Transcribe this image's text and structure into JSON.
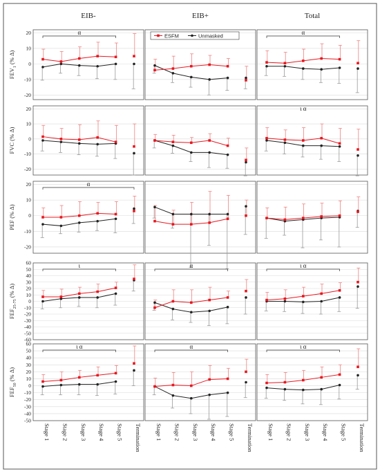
{
  "figure": {
    "columns": [
      "EIB-",
      "EIB+",
      "Total"
    ],
    "x_categories": [
      "Stage 1",
      "Stage 2",
      "Stage 3",
      "Stage 4",
      "Stage 5",
      "Termination"
    ],
    "legend": {
      "esfm": "ESFM",
      "unmasked": "Unmasked",
      "placement": "top of EIB+ panel, FEV1 row"
    },
    "colors": {
      "esfm": "#e8171f",
      "unmasked": "#222222",
      "esfm_error": "#f08080",
      "unmasked_error": "#999999",
      "frame": "#555555"
    }
  },
  "chart_data": [
    {
      "type": "line",
      "row": 0,
      "ylabel": "FEV1 (% Δ)",
      "ylim": [
        -23,
        22
      ],
      "yticks": [
        -20,
        -10,
        0,
        10,
        20
      ],
      "panels": [
        {
          "column": "EIB-",
          "esfm": [
            3,
            1.5,
            3.5,
            5,
            4.5,
            5
          ],
          "esfm_sd": [
            6.5,
            6.5,
            7.5,
            9,
            9,
            14.5
          ],
          "unmasked": [
            -2,
            0,
            -1,
            -1.5,
            0,
            0
          ],
          "unmasked_sd": [
            8.5,
            6,
            6.5,
            8,
            10,
            16
          ],
          "significance": [
            {
              "label": "α",
              "from": 0,
              "to": 4
            }
          ]
        },
        {
          "column": "EIB+",
          "esfm": [
            -4,
            -3,
            -1.5,
            -0.5,
            -1.5,
            -10.5
          ],
          "esfm_sd": [
            7,
            8,
            8,
            6,
            5,
            9
          ],
          "unmasked": [
            -1,
            -6,
            -8.5,
            -10,
            -9,
            -9
          ],
          "unmasked_sd": [
            5,
            6,
            6.5,
            10,
            8,
            7
          ],
          "significance": []
        },
        {
          "column": "Total",
          "esfm": [
            1,
            0.5,
            2,
            3.5,
            3,
            0.5
          ],
          "esfm_sd": [
            7.5,
            7,
            7.5,
            9.5,
            9,
            14.5
          ],
          "unmasked": [
            -1.5,
            -1.5,
            -3,
            -3.5,
            -2.5,
            -3
          ],
          "unmasked_sd": [
            6,
            6.5,
            7,
            8.5,
            10,
            15.5
          ],
          "significance": [
            {
              "label": "α",
              "from": 0,
              "to": 4
            }
          ]
        }
      ]
    },
    {
      "type": "line",
      "row": 1,
      "ylabel": "FVC (% Δ)",
      "ylim": [
        -24,
        22
      ],
      "yticks": [
        -20,
        -10,
        0,
        10,
        20
      ],
      "panels": [
        {
          "column": "EIB-",
          "esfm": [
            1.5,
            0,
            -0.5,
            1,
            -2,
            -5
          ],
          "esfm_sd": [
            7.5,
            7,
            10,
            11,
            11,
            15
          ],
          "unmasked": [
            -1,
            -2,
            -3,
            -3.5,
            -3,
            -9.5
          ],
          "unmasked_sd": [
            7,
            7,
            7.5,
            8,
            10,
            14.5
          ],
          "significance": []
        },
        {
          "column": "EIB+",
          "esfm": [
            -1,
            -2,
            -2.5,
            -1,
            -4.5,
            -14
          ],
          "esfm_sd": [
            4,
            4.5,
            3.5,
            4.5,
            5,
            8
          ],
          "unmasked": [
            -1,
            -4.5,
            -9,
            -9,
            -10.5,
            -15.5
          ],
          "unmasked_sd": [
            5,
            5,
            6,
            10,
            9,
            9
          ],
          "significance": []
        },
        {
          "column": "Total",
          "esfm": [
            0.5,
            -0.5,
            -1,
            0.5,
            -3,
            -7
          ],
          "esfm_sd": [
            7,
            6.5,
            8.5,
            9.5,
            10,
            13.5
          ],
          "unmasked": [
            -1,
            -2.5,
            -4.5,
            -4.5,
            -5,
            -11
          ],
          "unmasked_sd": [
            7,
            7.5,
            7.5,
            9,
            10,
            13.5
          ],
          "significance": [
            {
              "label": "ι α",
              "from": 2,
              "to": 2
            }
          ]
        }
      ]
    },
    {
      "type": "line",
      "row": 2,
      "ylabel": "PEF (% Δ)",
      "ylim": [
        -24,
        22
      ],
      "yticks": [
        -20,
        -10,
        0,
        10,
        20
      ],
      "panels": [
        {
          "column": "EIB-",
          "esfm": [
            -1,
            -1,
            0,
            1.5,
            1,
            3
          ],
          "esfm_sd": [
            6,
            7.5,
            9,
            7,
            8,
            9.5
          ],
          "unmasked": [
            -5.5,
            -6.5,
            -4.5,
            -3.5,
            -2,
            4.5
          ],
          "unmasked_sd": [
            8.5,
            5,
            6,
            6,
            9,
            9.5
          ],
          "significance": [
            {
              "label": "α",
              "from": 0,
              "to": 5
            }
          ]
        },
        {
          "column": "EIB+",
          "esfm": [
            -3.5,
            -5.5,
            -5.5,
            -4.5,
            -2,
            0
          ],
          "esfm_sd": [
            10,
            9,
            14,
            20,
            15,
            10
          ],
          "unmasked": [
            5.5,
            1,
            1,
            1,
            1,
            6
          ],
          "unmasked_sd": [
            7,
            9,
            34,
            20,
            35,
            18
          ],
          "significance": []
        },
        {
          "column": "Total",
          "esfm": [
            -1.5,
            -2.5,
            -1.5,
            -0.5,
            0,
            2.5
          ],
          "esfm_sd": [
            6.5,
            8,
            9,
            8.5,
            9.5,
            9.5
          ],
          "unmasked": [
            -1.5,
            -3.5,
            -2.5,
            -1.5,
            -1,
            3
          ],
          "unmasked_sd": [
            13,
            9,
            18,
            14,
            19,
            10.5
          ],
          "significance": []
        }
      ]
    },
    {
      "type": "line",
      "row": 3,
      "ylabel": "FEF25-75 (% Δ)",
      "ylim": [
        -60,
        60
      ],
      "yticks": [
        -60,
        -50,
        -40,
        -30,
        -20,
        -10,
        0,
        10,
        20,
        30,
        40,
        50,
        60
      ],
      "panels": [
        {
          "column": "EIB-",
          "esfm": [
            7,
            7,
            12,
            15,
            21,
            35
          ],
          "esfm_sd": [
            10,
            12,
            10,
            12,
            9,
            22
          ],
          "unmasked": [
            0,
            4,
            6,
            6,
            12,
            33
          ],
          "unmasked_sd": [
            12,
            14,
            14,
            16,
            18,
            17
          ],
          "significance": [
            {
              "label": "ι",
              "from": 0,
              "to": 4
            }
          ]
        },
        {
          "column": "EIB+",
          "esfm": [
            -10,
            0,
            -2,
            2,
            6,
            16
          ],
          "esfm_sd": [
            12,
            18,
            20,
            20,
            10,
            18
          ],
          "unmasked": [
            -2,
            -12,
            -17,
            -15,
            -9,
            6
          ],
          "unmasked_sd": [
            12,
            17,
            16,
            23,
            26,
            26
          ],
          "significance": [
            {
              "label": "α",
              "from": 0,
              "to": 4
            }
          ]
        },
        {
          "column": "Total",
          "esfm": [
            2,
            4,
            8,
            12,
            17,
            30
          ],
          "esfm_sd": [
            12,
            14,
            14,
            15,
            12,
            22
          ],
          "unmasked": [
            0,
            0,
            -1,
            0,
            6,
            23
          ],
          "unmasked_sd": [
            15,
            16,
            18,
            20,
            22,
            34
          ],
          "significance": [
            {
              "label": "ι α",
              "from": 0,
              "to": 4
            }
          ]
        }
      ]
    },
    {
      "type": "line",
      "row": 4,
      "ylabel": "FEF50 (% Δ)",
      "ylim": [
        -50,
        60
      ],
      "yticks": [
        -50,
        -40,
        -30,
        -20,
        -10,
        0,
        10,
        20,
        30,
        40,
        50,
        60
      ],
      "panels": [
        {
          "column": "EIB-",
          "esfm": [
            6,
            8,
            12,
            15,
            18,
            32
          ],
          "esfm_sd": [
            10,
            12,
            10,
            12,
            11,
            25
          ],
          "unmasked": [
            -1,
            1,
            2,
            2,
            6,
            22
          ],
          "unmasked_sd": [
            12,
            14,
            15,
            16,
            18,
            22
          ],
          "significance": [
            {
              "label": "ι α",
              "from": 0,
              "to": 4
            }
          ]
        },
        {
          "column": "EIB+",
          "esfm": [
            -1,
            1,
            0,
            9,
            10,
            20
          ],
          "esfm_sd": [
            12,
            18,
            20,
            20,
            15,
            18
          ],
          "unmasked": [
            -1,
            -14,
            -18,
            -13,
            -10,
            5
          ],
          "unmasked_sd": [
            12,
            18,
            22,
            35,
            34,
            22
          ],
          "significance": [
            {
              "label": "α",
              "from": 0,
              "to": 4
            }
          ]
        },
        {
          "column": "Total",
          "esfm": [
            4,
            5,
            8,
            12,
            16,
            27
          ],
          "esfm_sd": [
            12,
            14,
            14,
            15,
            14,
            26
          ],
          "unmasked": [
            -3,
            -5,
            -6,
            -5,
            1,
            15
          ],
          "unmasked_sd": [
            15,
            16,
            20,
            22,
            20,
            20
          ],
          "significance": [
            {
              "label": "ι α",
              "from": 0,
              "to": 4
            }
          ]
        }
      ]
    }
  ]
}
